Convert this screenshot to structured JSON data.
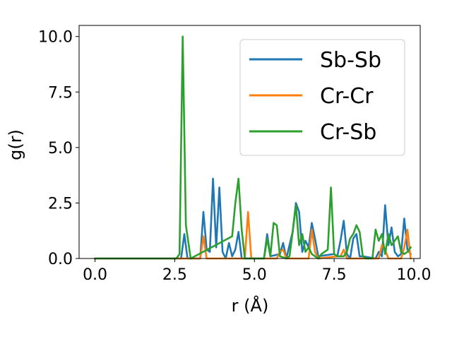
{
  "chart_data": {
    "type": "line",
    "xlabel": "r (Å)",
    "ylabel": "g(r)",
    "xlim": [
      -0.5,
      10.2
    ],
    "ylim": [
      0,
      10.5
    ],
    "xticks": [
      "0.0",
      "2.5",
      "5.0",
      "7.5",
      "10.0"
    ],
    "yticks": [
      "0.0",
      "2.5",
      "5.0",
      "7.5",
      "10.0"
    ],
    "xtick_values": [
      0,
      2.5,
      5.0,
      7.5,
      10.0
    ],
    "ytick_values": [
      0,
      2.5,
      5.0,
      7.5,
      10.0
    ],
    "grid": false,
    "legend_position": "top-right",
    "series": [
      {
        "name": "Sb-Sb",
        "color": "#1f77b4",
        "x": [
          0,
          2.6,
          2.7,
          2.8,
          2.9,
          3.3,
          3.4,
          3.5,
          3.6,
          3.7,
          3.8,
          3.9,
          4.0,
          4.1,
          4.2,
          4.3,
          4.4,
          4.5,
          4.6,
          5.3,
          5.4,
          5.5,
          5.8,
          5.9,
          6.0,
          6.2,
          6.3,
          6.4,
          6.5,
          6.6,
          6.7,
          6.8,
          6.9,
          7.0,
          7.5,
          7.6,
          7.7,
          7.8,
          7.9,
          8.0,
          8.1,
          8.2,
          8.3,
          8.4,
          8.8,
          8.9,
          9.0,
          9.1,
          9.2,
          9.3,
          9.4,
          9.5,
          9.6,
          9.7,
          9.8,
          9.9
        ],
        "values": [
          0,
          0,
          0,
          1.1,
          0,
          0,
          2.1,
          0.4,
          0.3,
          3.6,
          0.5,
          3.2,
          0.3,
          0,
          0.7,
          0.1,
          0.4,
          1.2,
          0,
          0,
          1.1,
          0.1,
          0.2,
          0.7,
          0,
          1.2,
          2.5,
          2.1,
          0.3,
          0.8,
          0.5,
          1.6,
          0.9,
          0.1,
          0.2,
          0.1,
          0.8,
          1.7,
          0.2,
          0,
          0.9,
          1.1,
          0.1,
          0.1,
          0,
          0.3,
          0.1,
          2.4,
          0.6,
          1.4,
          0.3,
          0.1,
          0.2,
          1.8,
          0.4,
          0.2
        ]
      },
      {
        "name": "Cr-Cr",
        "color": "#ff7f0e",
        "x": [
          0,
          3.3,
          3.4,
          3.5,
          4.7,
          4.8,
          4.9,
          5.7,
          5.8,
          5.9,
          6.0,
          6.7,
          6.8,
          6.9,
          7.0,
          7.6,
          7.7,
          7.8,
          7.9,
          8.9,
          9.0,
          9.1,
          9.2,
          9.6,
          9.7,
          9.8,
          9.9
        ],
        "values": [
          0,
          0,
          1.0,
          0,
          0,
          2.1,
          0,
          0,
          0.3,
          0.4,
          0,
          0,
          1.3,
          0.3,
          0,
          0.1,
          0.1,
          0.4,
          0,
          0,
          0.6,
          0.4,
          0,
          0,
          0.5,
          1.3,
          0
        ]
      },
      {
        "name": "Cr-Sb",
        "color": "#2ca02c",
        "x": [
          0,
          2.55,
          2.65,
          2.75,
          2.85,
          3.0,
          4.3,
          4.4,
          4.5,
          4.6,
          4.7,
          5.3,
          5.4,
          5.5,
          5.6,
          5.7,
          5.8,
          6.0,
          6.1,
          6.2,
          6.3,
          6.4,
          6.5,
          6.6,
          6.7,
          6.8,
          7.0,
          7.1,
          7.2,
          7.3,
          7.4,
          7.5,
          7.6,
          7.7,
          7.8,
          7.9,
          8.0,
          8.1,
          8.2,
          8.3,
          8.4,
          8.5,
          8.7,
          8.8,
          8.9,
          9.0,
          9.1,
          9.2,
          9.3,
          9.4,
          9.5,
          9.6,
          9.7,
          9.8,
          9.9
        ],
        "values": [
          0,
          0,
          0.2,
          10.0,
          1.5,
          0,
          1.0,
          2.5,
          3.6,
          1.3,
          0,
          0,
          0.9,
          0.1,
          1.6,
          1.5,
          0.1,
          0,
          0.1,
          1.2,
          2.4,
          0.6,
          1.1,
          0.3,
          0.5,
          0.2,
          0,
          0.2,
          0.3,
          0.4,
          3.2,
          0.2,
          0.1,
          0.1,
          0.1,
          0.3,
          0.9,
          1.1,
          1.5,
          1.2,
          0.1,
          0,
          0,
          1.3,
          0.8,
          1.1,
          0.2,
          1.1,
          0.6,
          0.8,
          1.0,
          0.3,
          0.2,
          0.3,
          0.5
        ]
      }
    ]
  }
}
